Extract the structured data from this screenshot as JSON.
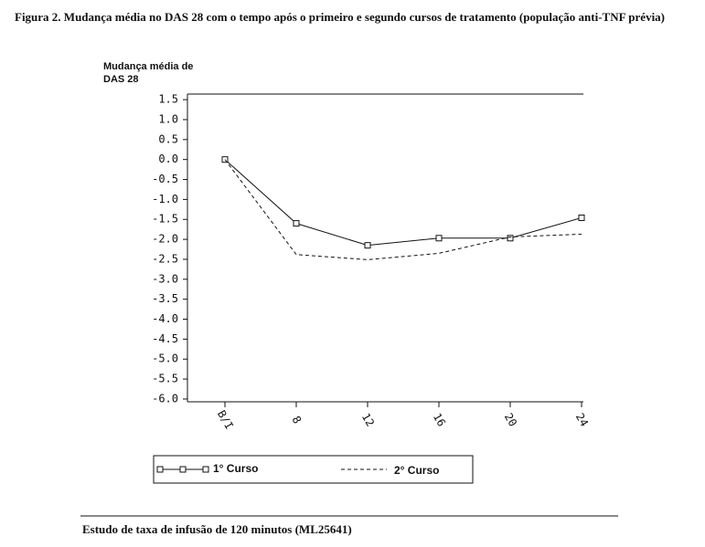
{
  "header": {
    "title": "Figura 2. Mudança média no DAS 28 com o tempo após o primeiro e segundo cursos de tratamento (população anti-TNF prévia)"
  },
  "chart_data": {
    "type": "line",
    "ylabel": [
      "Mudança média de",
      "DAS 28"
    ],
    "categories": [
      "B/I",
      "8",
      "12",
      "16",
      "20",
      "24"
    ],
    "series": [
      {
        "name": "1° Curso",
        "color": "#111111",
        "line_style": "solid",
        "marker": "square",
        "values": [
          0.0,
          -1.6,
          -2.15,
          -1.97,
          -1.97,
          -1.46
        ]
      },
      {
        "name": "2° Curso",
        "color": "#111111",
        "line_style": "dashed",
        "marker": "none",
        "values": [
          0.0,
          -2.38,
          -2.51,
          -2.35,
          -1.94,
          -1.87
        ]
      }
    ],
    "ylim": [
      -6.07,
      1.64
    ],
    "yticks": [
      1.5,
      {
        "value": 1,
        "label": "1.0"
      },
      0.5,
      {
        "value": 0,
        "label": "0.0"
      },
      -0.5,
      {
        "value": -1,
        "label": "-1.0"
      },
      -1.5,
      {
        "value": -2,
        "label": "-2.0"
      },
      -2.5,
      {
        "value": -3,
        "label": "-3.0"
      },
      -3.5,
      {
        "value": -4,
        "label": "-4.0"
      },
      -4.5,
      {
        "value": -5,
        "label": "-5.0"
      },
      -5.5,
      {
        "value": -6,
        "label": "-6.0"
      }
    ],
    "legend": "bottom"
  },
  "footer": {
    "text": "Estudo de taxa de infusão de 120 minutos (ML25641)"
  }
}
